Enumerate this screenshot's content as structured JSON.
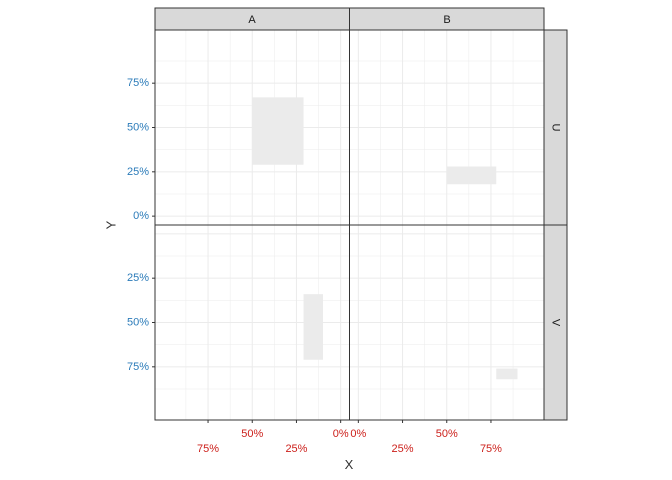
{
  "chart_data": {
    "type": "rect",
    "xlabel": "X",
    "ylabel": "Y",
    "facet_columns": [
      "A",
      "B"
    ],
    "facet_rows": [
      "U",
      "V"
    ],
    "x_ticks": {
      "A": [
        "75%",
        "50%",
        "25%",
        "0%"
      ],
      "B": [
        "0%",
        "25%",
        "50%",
        "75%"
      ]
    },
    "y_ticks": {
      "U": [
        "75%",
        "50%",
        "25%",
        "0%"
      ],
      "V": [
        "25%",
        "50%",
        "75%"
      ]
    },
    "colors": {
      "x_tick_text": "#cc1f1a",
      "y_tick_text": "#2b7bb9",
      "strip_fill": "#d9d9d9",
      "rect_fill": "#ebebeb",
      "grid": "#ebebeb",
      "axis_line": "#333333"
    },
    "rects": [
      {
        "panel": "A-U",
        "xmin": 0.21,
        "xmax": 0.5,
        "ymin": 0.29,
        "ymax": 0.67
      },
      {
        "panel": "B-U",
        "xmin": 0.5,
        "xmax": 0.78,
        "ymin": 0.18,
        "ymax": 0.28
      },
      {
        "panel": "A-V",
        "xmin": 0.1,
        "xmax": 0.21,
        "ymin": 0.34,
        "ymax": 0.71
      },
      {
        "panel": "B-V",
        "xmin": 0.78,
        "xmax": 0.9,
        "ymin": 0.76,
        "ymax": 0.82
      }
    ]
  }
}
